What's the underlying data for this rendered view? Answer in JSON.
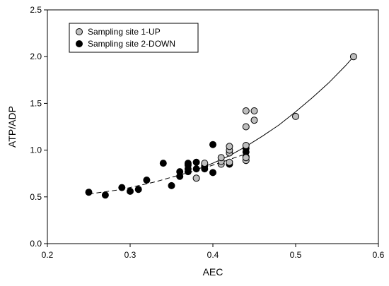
{
  "chart_data": {
    "type": "scatter",
    "xlabel": "AEC",
    "ylabel": "ATP/ADP",
    "xlim": [
      0.2,
      0.6
    ],
    "ylim": [
      0.0,
      2.5
    ],
    "xticks": [
      0.2,
      0.3,
      0.4,
      0.5,
      0.6
    ],
    "yticks": [
      0.0,
      0.5,
      1.0,
      1.5,
      2.0,
      2.5
    ],
    "xtick_labels": [
      "0.2",
      "0.3",
      "0.4",
      "0.5",
      "0.6"
    ],
    "ytick_labels": [
      "0.0",
      "0.5",
      "1.0",
      "1.5",
      "2.0",
      "2.5"
    ],
    "grid": false,
    "legend_position": "top-left",
    "series": [
      {
        "name": "Sampling site 1-UP",
        "marker_color": "#bebebe",
        "points": [
          {
            "x": 0.38,
            "y": 0.7
          },
          {
            "x": 0.39,
            "y": 0.86
          },
          {
            "x": 0.41,
            "y": 0.85
          },
          {
            "x": 0.41,
            "y": 0.88
          },
          {
            "x": 0.41,
            "y": 0.92
          },
          {
            "x": 0.42,
            "y": 0.87
          },
          {
            "x": 0.42,
            "y": 0.97
          },
          {
            "x": 0.42,
            "y": 1.0
          },
          {
            "x": 0.42,
            "y": 1.04
          },
          {
            "x": 0.44,
            "y": 0.89
          },
          {
            "x": 0.44,
            "y": 0.92
          },
          {
            "x": 0.44,
            "y": 1.05
          },
          {
            "x": 0.44,
            "y": 1.25
          },
          {
            "x": 0.44,
            "y": 1.42
          },
          {
            "x": 0.45,
            "y": 1.32
          },
          {
            "x": 0.45,
            "y": 1.42
          },
          {
            "x": 0.5,
            "y": 1.36
          },
          {
            "x": 0.57,
            "y": 2.0
          }
        ]
      },
      {
        "name": "Sampling site 2-DOWN",
        "marker_color": "#000000",
        "points": [
          {
            "x": 0.25,
            "y": 0.55
          },
          {
            "x": 0.27,
            "y": 0.52
          },
          {
            "x": 0.29,
            "y": 0.6
          },
          {
            "x": 0.3,
            "y": 0.56
          },
          {
            "x": 0.31,
            "y": 0.58
          },
          {
            "x": 0.32,
            "y": 0.68
          },
          {
            "x": 0.34,
            "y": 0.86
          },
          {
            "x": 0.35,
            "y": 0.62
          },
          {
            "x": 0.36,
            "y": 0.72
          },
          {
            "x": 0.36,
            "y": 0.77
          },
          {
            "x": 0.37,
            "y": 0.77
          },
          {
            "x": 0.37,
            "y": 0.8
          },
          {
            "x": 0.37,
            "y": 0.84
          },
          {
            "x": 0.37,
            "y": 0.86
          },
          {
            "x": 0.38,
            "y": 0.8
          },
          {
            "x": 0.38,
            "y": 0.87
          },
          {
            "x": 0.39,
            "y": 0.8
          },
          {
            "x": 0.39,
            "y": 0.83
          },
          {
            "x": 0.4,
            "y": 0.76
          },
          {
            "x": 0.4,
            "y": 1.06
          },
          {
            "x": 0.42,
            "y": 0.85
          },
          {
            "x": 0.44,
            "y": 0.93
          },
          {
            "x": 0.44,
            "y": 0.98
          },
          {
            "x": 0.44,
            "y": 1.02
          }
        ]
      }
    ],
    "fit_lines": [
      {
        "series": "Sampling site 1-UP",
        "style": "solid",
        "points": [
          {
            "x": 0.38,
            "y": 0.79
          },
          {
            "x": 0.4,
            "y": 0.86
          },
          {
            "x": 0.42,
            "y": 0.94
          },
          {
            "x": 0.44,
            "y": 1.04
          },
          {
            "x": 0.46,
            "y": 1.15
          },
          {
            "x": 0.48,
            "y": 1.27
          },
          {
            "x": 0.5,
            "y": 1.41
          },
          {
            "x": 0.52,
            "y": 1.56
          },
          {
            "x": 0.54,
            "y": 1.72
          },
          {
            "x": 0.56,
            "y": 1.9
          },
          {
            "x": 0.57,
            "y": 2.0
          }
        ]
      },
      {
        "series": "Sampling site 2-DOWN",
        "style": "dashed",
        "points": [
          {
            "x": 0.25,
            "y": 0.53
          },
          {
            "x": 0.27,
            "y": 0.555
          },
          {
            "x": 0.29,
            "y": 0.58
          },
          {
            "x": 0.31,
            "y": 0.62
          },
          {
            "x": 0.33,
            "y": 0.66
          },
          {
            "x": 0.35,
            "y": 0.71
          },
          {
            "x": 0.37,
            "y": 0.76
          },
          {
            "x": 0.39,
            "y": 0.81
          },
          {
            "x": 0.41,
            "y": 0.87
          },
          {
            "x": 0.43,
            "y": 0.93
          },
          {
            "x": 0.44,
            "y": 0.96
          }
        ]
      }
    ]
  }
}
